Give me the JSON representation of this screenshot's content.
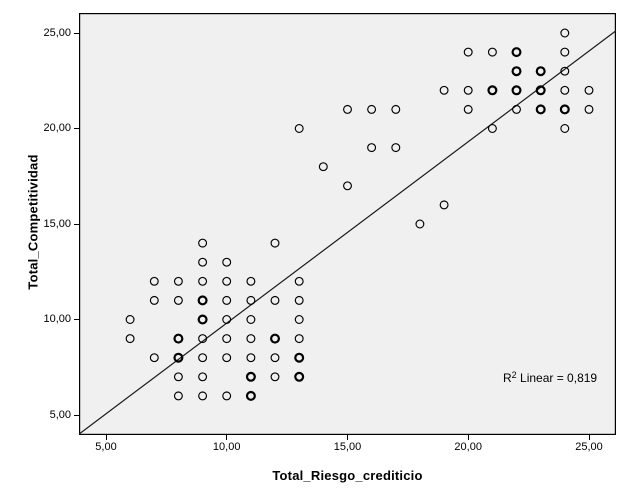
{
  "chart_data": {
    "type": "scatter",
    "title": "",
    "xlabel": "Total_Riesgo_crediticio",
    "ylabel": "Total_Competitividad",
    "xlim": [
      3.882,
      26.12
    ],
    "ylim": [
      3.95,
      26.05
    ],
    "grid": false,
    "legend": "none",
    "plot_background": "#f0f0f0",
    "frame_color": "#000000",
    "marker_color": "#000000",
    "line_color": "#1a1a1a",
    "xticks": [
      {
        "value": 5,
        "label": "5,00"
      },
      {
        "value": 10,
        "label": "10,00"
      },
      {
        "value": 15,
        "label": "15,00"
      },
      {
        "value": 20,
        "label": "20,00"
      },
      {
        "value": 25,
        "label": "25,00"
      }
    ],
    "yticks": [
      {
        "value": 5,
        "label": "5,00"
      },
      {
        "value": 10,
        "label": "10,00"
      },
      {
        "value": 15,
        "label": "15,00"
      },
      {
        "value": 20,
        "label": "20,00"
      },
      {
        "value": 25,
        "label": "25,00"
      }
    ],
    "r2_label": {
      "base": "R",
      "sup": "2",
      "rest": " Linear = 0,819"
    },
    "regression": {
      "slope": 0.95,
      "intercept": 0.31
    },
    "points_note": "each point = [x, y, bold_overplot_flag]",
    "points": [
      [
        8,
        6,
        0
      ],
      [
        9,
        6,
        0
      ],
      [
        10,
        6,
        0
      ],
      [
        11,
        6,
        1
      ],
      [
        8,
        7,
        0
      ],
      [
        9,
        7,
        0
      ],
      [
        11,
        7,
        1
      ],
      [
        12,
        7,
        0
      ],
      [
        13,
        7,
        1
      ],
      [
        7,
        8,
        0
      ],
      [
        8,
        8,
        1
      ],
      [
        9,
        8,
        0
      ],
      [
        10,
        8,
        0
      ],
      [
        11,
        8,
        0
      ],
      [
        12,
        8,
        0
      ],
      [
        13,
        8,
        1
      ],
      [
        6,
        9,
        0
      ],
      [
        8,
        9,
        1
      ],
      [
        9,
        9,
        0
      ],
      [
        10,
        9,
        0
      ],
      [
        11,
        9,
        0
      ],
      [
        12,
        9,
        1
      ],
      [
        13,
        9,
        0
      ],
      [
        6,
        10,
        0
      ],
      [
        9,
        10,
        1
      ],
      [
        10,
        10,
        0
      ],
      [
        11,
        10,
        0
      ],
      [
        13,
        10,
        0
      ],
      [
        7,
        11,
        0
      ],
      [
        8,
        11,
        0
      ],
      [
        9,
        11,
        1
      ],
      [
        10,
        11,
        0
      ],
      [
        11,
        11,
        0
      ],
      [
        12,
        11,
        0
      ],
      [
        13,
        11,
        0
      ],
      [
        7,
        12,
        0
      ],
      [
        8,
        12,
        0
      ],
      [
        9,
        12,
        0
      ],
      [
        10,
        12,
        0
      ],
      [
        11,
        12,
        0
      ],
      [
        13,
        12,
        0
      ],
      [
        9,
        13,
        0
      ],
      [
        10,
        13,
        0
      ],
      [
        9,
        14,
        0
      ],
      [
        12,
        14,
        0
      ],
      [
        18,
        15,
        0
      ],
      [
        19,
        16,
        0
      ],
      [
        15,
        17,
        0
      ],
      [
        14,
        18,
        0
      ],
      [
        16,
        19,
        0
      ],
      [
        17,
        19,
        0
      ],
      [
        13,
        20,
        0
      ],
      [
        21,
        20,
        0
      ],
      [
        24,
        20,
        0
      ],
      [
        15,
        21,
        0
      ],
      [
        16,
        21,
        0
      ],
      [
        17,
        21,
        0
      ],
      [
        20,
        21,
        0
      ],
      [
        22,
        21,
        0
      ],
      [
        23,
        21,
        1
      ],
      [
        24,
        21,
        1
      ],
      [
        25,
        21,
        0
      ],
      [
        19,
        22,
        0
      ],
      [
        20,
        22,
        0
      ],
      [
        21,
        22,
        1
      ],
      [
        22,
        22,
        1
      ],
      [
        23,
        22,
        1
      ],
      [
        24,
        22,
        0
      ],
      [
        25,
        22,
        0
      ],
      [
        22,
        23,
        1
      ],
      [
        23,
        23,
        1
      ],
      [
        24,
        23,
        0
      ],
      [
        20,
        24,
        0
      ],
      [
        21,
        24,
        0
      ],
      [
        22,
        24,
        1
      ],
      [
        24,
        24,
        0
      ],
      [
        24,
        25,
        0
      ]
    ]
  }
}
